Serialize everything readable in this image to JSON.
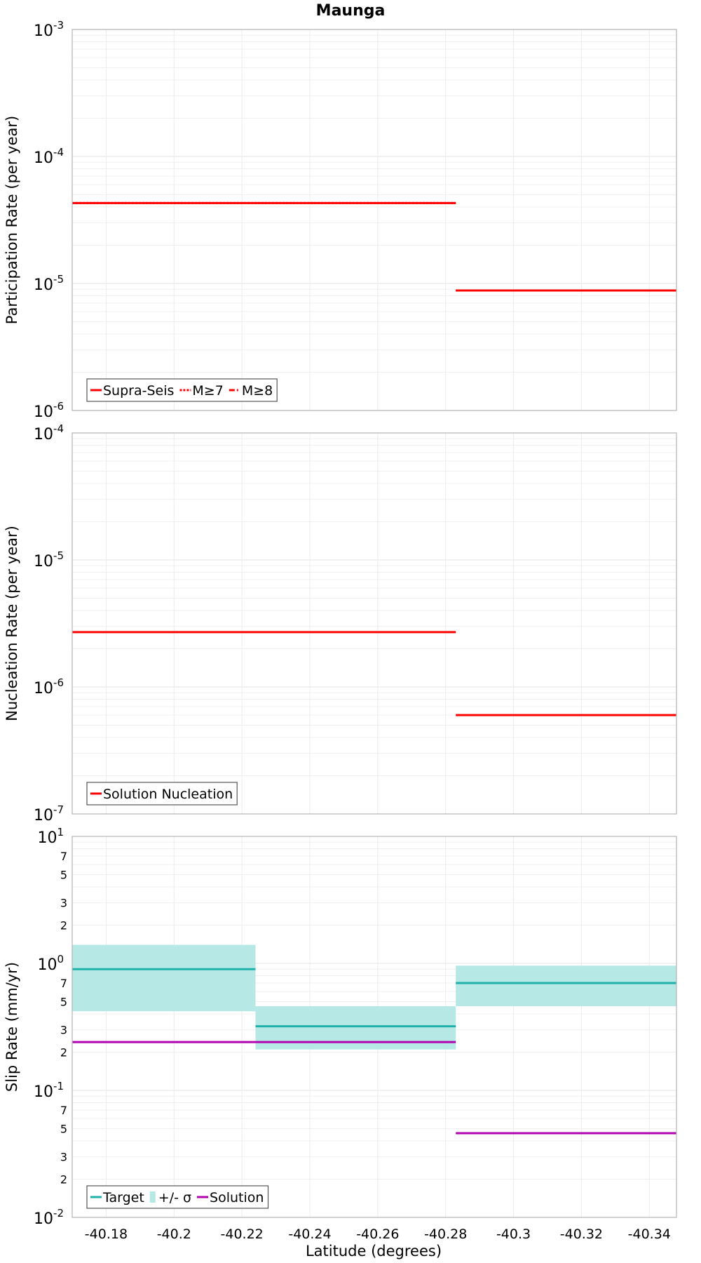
{
  "figure": {
    "title": "Maunga",
    "xlabel": "Latitude (degrees)",
    "xlim": [
      -40.17,
      -40.348
    ],
    "x_ticks": [
      -40.18,
      -40.2,
      -40.22,
      -40.24,
      -40.26,
      -40.28,
      -40.3,
      -40.32,
      -40.34
    ],
    "x_tick_labels": [
      "-40.18",
      "-40.2",
      "-40.22",
      "-40.24",
      "-40.26",
      "-40.28",
      "-40.3",
      "-40.32",
      "-40.34"
    ],
    "grid": true
  },
  "chart_data": [
    {
      "type": "line",
      "ylabel": "Participation Rate (per year)",
      "yscale": "log",
      "ylim": [
        1e-06,
        0.001
      ],
      "y_major_exponents": [
        -6,
        -5,
        -4,
        -3
      ],
      "legend_position": "bottom-left",
      "legend": [
        {
          "label": "Supra-Seis",
          "style": "solid",
          "color": "#ff0000"
        },
        {
          "label": "M≥7",
          "style": "dotted",
          "color": "#ff0000"
        },
        {
          "label": "M≥8",
          "style": "dashdot",
          "color": "#ff0000"
        }
      ],
      "series": [
        {
          "name": "Supra-Seis",
          "color": "#ff0000",
          "style": "solid",
          "segments": [
            {
              "x": [
                -40.17,
                -40.283
              ],
              "y": 4.3e-05
            },
            {
              "x": [
                -40.283,
                -40.348
              ],
              "y": 8.8e-06
            }
          ]
        },
        {
          "name": "M≥7",
          "color": "#ff0000",
          "style": "dotted",
          "segments": [
            {
              "x": [
                -40.17,
                -40.283
              ],
              "y": 4.3e-05
            },
            {
              "x": [
                -40.283,
                -40.348
              ],
              "y": 8.8e-06
            }
          ]
        }
      ]
    },
    {
      "type": "line",
      "ylabel": "Nucleation Rate (per year)",
      "yscale": "log",
      "ylim": [
        1e-07,
        0.0001
      ],
      "y_major_exponents": [
        -7,
        -6,
        -5,
        -4
      ],
      "legend_position": "bottom-left",
      "legend": [
        {
          "label": "Solution Nucleation",
          "style": "solid",
          "color": "#ff0000"
        }
      ],
      "series": [
        {
          "name": "Solution Nucleation",
          "color": "#ff0000",
          "style": "solid",
          "segments": [
            {
              "x": [
                -40.17,
                -40.283
              ],
              "y": 2.7e-06
            },
            {
              "x": [
                -40.283,
                -40.348
              ],
              "y": 6e-07
            }
          ]
        }
      ]
    },
    {
      "type": "line",
      "ylabel": "Slip Rate (mm/yr)",
      "yscale": "log",
      "ylim": [
        0.01,
        10
      ],
      "y_major_exponents": [
        -2,
        -1,
        0,
        1
      ],
      "y_minor_labels": [
        "2",
        "3",
        "5",
        "7"
      ],
      "legend_position": "bottom-left",
      "legend": [
        {
          "label": "Target",
          "style": "solid",
          "color": "#20b2aa"
        },
        {
          "label": "+/- σ",
          "style": "band",
          "color": "#b6e8e6"
        },
        {
          "label": "Solution",
          "style": "solid",
          "color": "#b000b0"
        }
      ],
      "bands": [
        {
          "name": "+/- σ",
          "color": "#b6e8e6",
          "segments": [
            {
              "x": [
                -40.17,
                -40.224
              ],
              "low": 0.42,
              "high": 1.4
            },
            {
              "x": [
                -40.224,
                -40.283
              ],
              "low": 0.21,
              "high": 0.46
            },
            {
              "x": [
                -40.283,
                -40.348
              ],
              "low": 0.46,
              "high": 0.96
            }
          ]
        }
      ],
      "series": [
        {
          "name": "Target",
          "color": "#20b2aa",
          "style": "solid",
          "segments": [
            {
              "x": [
                -40.17,
                -40.224
              ],
              "y": 0.9
            },
            {
              "x": [
                -40.224,
                -40.283
              ],
              "y": 0.32
            },
            {
              "x": [
                -40.283,
                -40.348
              ],
              "y": 0.7
            }
          ]
        },
        {
          "name": "Solution",
          "color": "#b000b0",
          "style": "solid",
          "segments": [
            {
              "x": [
                -40.17,
                -40.283
              ],
              "y": 0.24
            },
            {
              "x": [
                -40.283,
                -40.348
              ],
              "y": 0.046
            }
          ]
        }
      ]
    }
  ]
}
